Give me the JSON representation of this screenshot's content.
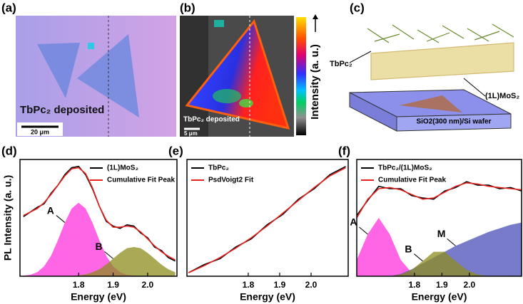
{
  "panels": {
    "a": {
      "label": "(a)",
      "caption": "TbPc₂ deposited",
      "scale_bar": "20 μm"
    },
    "b": {
      "label": "(b)",
      "caption": "TbPc₂ deposited",
      "scale_bar": "5 μm",
      "colorbar_label": "Intensity (a. u.)"
    },
    "c": {
      "label": "(c)",
      "molecule": "TbPc₂",
      "layer": "(1L)MoS₂",
      "substrate": "SiO2(300 nm)/Si wafer"
    }
  },
  "chart_data": [
    {
      "type": "line",
      "panel_label": "(d)",
      "ylabel": "PL Intensity (a. u.)",
      "xlabel": "Energy (eV)",
      "xlim": [
        1.63,
        2.085
      ],
      "xticks": [
        1.8,
        1.9,
        {
          "value": 2.0,
          "label": "2.0"
        }
      ],
      "ylim": [
        0,
        1
      ],
      "legend": "upper right",
      "x": [
        1.64,
        1.66,
        1.68,
        1.7,
        1.72,
        1.74,
        1.76,
        1.78,
        1.8,
        1.82,
        1.84,
        1.86,
        1.88,
        1.9,
        1.92,
        1.94,
        1.96,
        1.98,
        2.0,
        2.02,
        2.04,
        2.06,
        2.08
      ],
      "series": [
        {
          "name": "A",
          "fill": true,
          "color": "#ff33dd",
          "values": [
            0.004,
            0.012,
            0.035,
            0.085,
            0.175,
            0.31,
            0.46,
            0.58,
            0.63,
            0.58,
            0.46,
            0.31,
            0.175,
            0.085,
            0.035,
            0.012,
            0.004,
            0,
            0,
            0,
            0,
            0,
            0
          ]
        },
        {
          "name": "B",
          "fill": true,
          "color": "#8c8c1e",
          "values": [
            0,
            0,
            0,
            0,
            0,
            0,
            0,
            0.003,
            0.007,
            0.017,
            0.034,
            0.06,
            0.1,
            0.15,
            0.2,
            0.24,
            0.25,
            0.24,
            0.2,
            0.15,
            0.1,
            0.06,
            0.034
          ]
        },
        {
          "name": "(1L)MoS₂",
          "color": "#000000",
          "values": [
            0.51,
            0.55,
            0.59,
            0.62,
            0.71,
            0.78,
            0.87,
            0.93,
            0.94,
            0.87,
            0.75,
            0.6,
            0.47,
            0.43,
            0.41,
            0.44,
            0.43,
            0.37,
            0.33,
            0.25,
            0.22,
            0.16,
            0.13
          ]
        },
        {
          "name": "Cumulative Fit Peak",
          "color": "#e8231f",
          "values": [
            0.52,
            0.55,
            0.58,
            0.63,
            0.7,
            0.78,
            0.86,
            0.92,
            0.93,
            0.88,
            0.76,
            0.6,
            0.48,
            0.42,
            0.42,
            0.43,
            0.42,
            0.38,
            0.32,
            0.26,
            0.21,
            0.17,
            0.14
          ]
        }
      ]
    },
    {
      "type": "line",
      "panel_label": "(e)",
      "xlabel": "Energy (eV)",
      "xlim": [
        1.605,
        2.118
      ],
      "xticks": [
        1.8,
        1.9,
        {
          "value": 2.0,
          "label": "2.0"
        }
      ],
      "ylim": [
        0,
        1
      ],
      "legend": "upper left",
      "x": [
        1.61,
        1.66,
        1.71,
        1.76,
        1.81,
        1.86,
        1.91,
        1.96,
        2.01,
        2.06,
        2.11
      ],
      "series": [
        {
          "name": "TbPc₂",
          "color": "#000000",
          "values": [
            0.03,
            0.1,
            0.15,
            0.25,
            0.32,
            0.44,
            0.53,
            0.66,
            0.75,
            0.87,
            0.94
          ]
        },
        {
          "name": "PsdVoigt2 Fit",
          "color": "#e8231f",
          "values": [
            0.03,
            0.09,
            0.16,
            0.24,
            0.33,
            0.43,
            0.54,
            0.65,
            0.76,
            0.86,
            0.93
          ]
        }
      ]
    },
    {
      "type": "line",
      "panel_label": "(f)",
      "xlabel": "Energy (eV)",
      "xlim": [
        1.59,
        2.19
      ],
      "xticks": [
        1.8,
        1.9,
        {
          "value": 2.0,
          "label": "2.0"
        }
      ],
      "ylim": [
        0,
        1
      ],
      "legend": "upper left",
      "x": [
        1.59,
        1.63,
        1.67,
        1.71,
        1.75,
        1.79,
        1.83,
        1.87,
        1.91,
        1.95,
        1.99,
        2.03,
        2.07,
        2.11,
        2.15,
        2.19
      ],
      "series": [
        {
          "name": "A",
          "fill": true,
          "color": "#ff33dd",
          "values": [
            0.14,
            0.36,
            0.5,
            0.36,
            0.14,
            0.03,
            0.003,
            0,
            0,
            0,
            0,
            0,
            0,
            0,
            0,
            0
          ]
        },
        {
          "name": "M",
          "fill": true,
          "color": "#4a4fb8",
          "values": [
            0,
            0,
            0,
            0,
            0.02,
            0.06,
            0.11,
            0.16,
            0.21,
            0.26,
            0.3,
            0.34,
            0.38,
            0.41,
            0.44,
            0.46
          ]
        },
        {
          "name": "B",
          "fill": true,
          "color": "#8c8c1e",
          "values": [
            0,
            0,
            0,
            0,
            0.015,
            0.055,
            0.13,
            0.21,
            0.21,
            0.13,
            0.055,
            0.015,
            0.002,
            0,
            0,
            0
          ]
        },
        {
          "name": "TbPc₂/(1L)MoS₂",
          "color": "#000000",
          "values": [
            0.52,
            0.65,
            0.77,
            0.75,
            0.75,
            0.69,
            0.67,
            0.66,
            0.73,
            0.76,
            0.81,
            0.78,
            0.78,
            0.75,
            0.76,
            0.73
          ]
        },
        {
          "name": "Cumulative Fit Peak",
          "color": "#e8231f",
          "values": [
            0.5,
            0.66,
            0.75,
            0.76,
            0.74,
            0.7,
            0.66,
            0.67,
            0.72,
            0.77,
            0.8,
            0.79,
            0.77,
            0.76,
            0.75,
            0.74
          ]
        }
      ]
    }
  ]
}
